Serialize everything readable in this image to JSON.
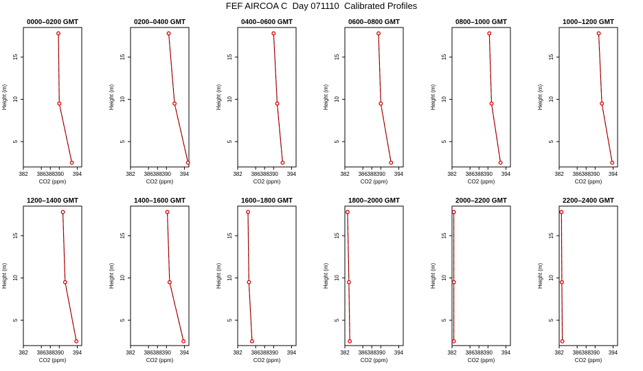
{
  "title": "FEF AIRCOA C  Day 071110  Calibrated Profiles",
  "chart_data": {
    "type": "line",
    "xlabel": "CO2 (ppm)",
    "ylabel": "Height (m)",
    "xlim": [
      382,
      395
    ],
    "ylim": [
      2,
      18.5
    ],
    "xticks": [
      382,
      386,
      388,
      390,
      394
    ],
    "xtick_labels": [
      "382",
      "386",
      "388",
      "390",
      "394"
    ],
    "yticks": [
      5,
      10,
      15
    ],
    "yticks_labels": [
      "5",
      "10",
      "15"
    ],
    "heights": [
      17.8,
      9.5,
      2.5
    ],
    "line_color": "#d00000",
    "panels": [
      {
        "title": "0000–0200 GMT",
        "co2": [
          389.8,
          390.0,
          392.8
        ]
      },
      {
        "title": "0200–0400 GMT",
        "co2": [
          390.5,
          391.8,
          394.8
        ]
      },
      {
        "title": "0400–0600 GMT",
        "co2": [
          390.0,
          390.8,
          392.0
        ]
      },
      {
        "title": "0600–0800 GMT",
        "co2": [
          389.5,
          390.0,
          392.3
        ]
      },
      {
        "title": "0800–1000 GMT",
        "co2": [
          390.3,
          390.8,
          392.8
        ]
      },
      {
        "title": "1000–1200 GMT",
        "co2": [
          390.8,
          391.5,
          393.8
        ]
      },
      {
        "title": "1200–1400 GMT",
        "co2": [
          390.8,
          391.3,
          393.8
        ]
      },
      {
        "title": "1400–1600 GMT",
        "co2": [
          390.2,
          390.7,
          393.8
        ]
      },
      {
        "title": "1600–1800 GMT",
        "co2": [
          384.3,
          384.5,
          385.2
        ]
      },
      {
        "title": "1800–2000 GMT",
        "co2": [
          382.6,
          382.9,
          383.1
        ]
      },
      {
        "title": "2000–2200 GMT",
        "co2": [
          382.4,
          382.4,
          382.4
        ]
      },
      {
        "title": "2200–2400 GMT",
        "co2": [
          382.5,
          382.6,
          382.7
        ]
      }
    ]
  }
}
